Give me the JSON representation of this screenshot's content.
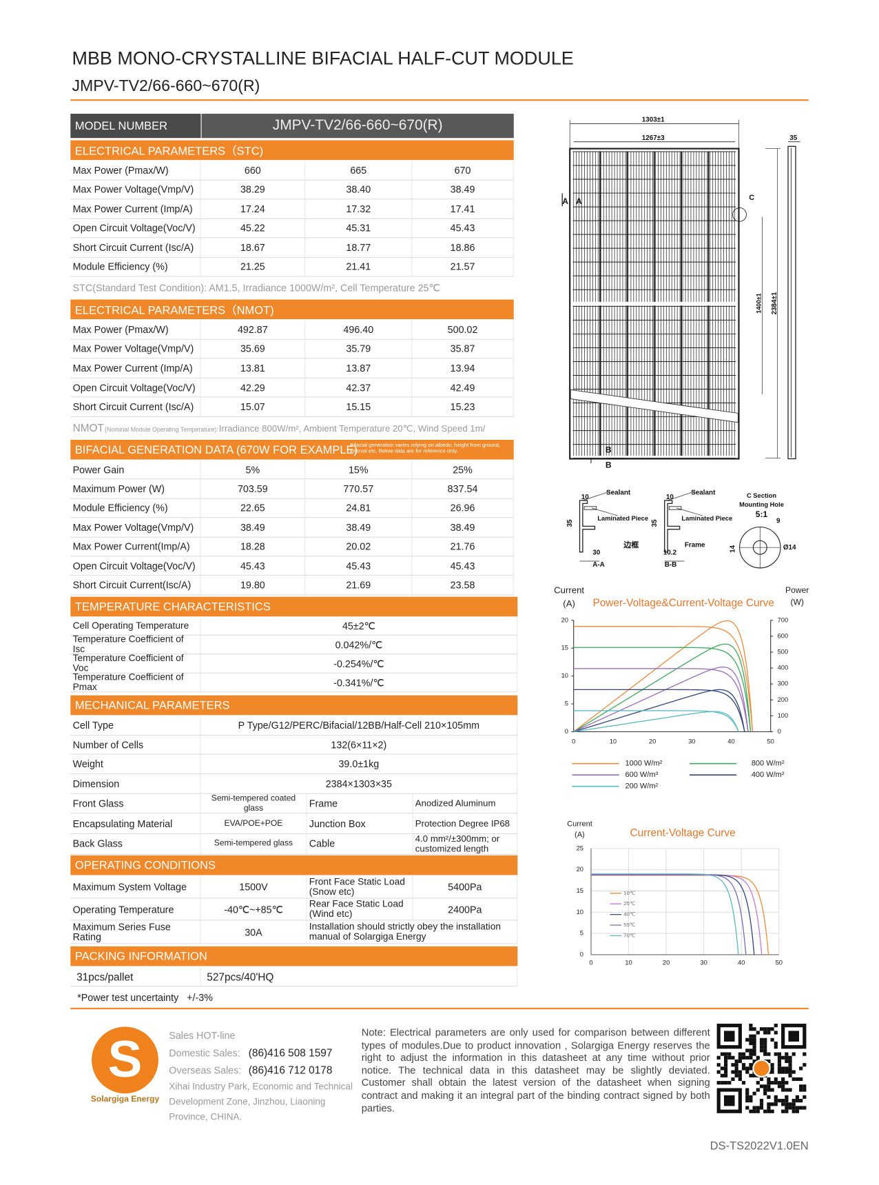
{
  "header": {
    "title": "MBB MONO-CRYSTALLINE BIFACIAL HALF-CUT MODULE",
    "subtitle": "JMPV-TV2/66-660~670(R)"
  },
  "model": {
    "label": "MODEL NUMBER",
    "value": "JMPV-TV2/66-660~670(R)"
  },
  "stc": {
    "title": "ELECTRICAL PARAMETERS（STC)",
    "rows": [
      [
        "Max Power (Pmax/W)",
        "660",
        "665",
        "670"
      ],
      [
        "Max Power Voltage(Vmp/V)",
        "38.29",
        "38.40",
        "38.49"
      ],
      [
        "Max Power Current (Imp/A)",
        "17.24",
        "17.32",
        "17.41"
      ],
      [
        "Open Circuit Voltage(Voc/V)",
        "45.22",
        "45.31",
        "45.43"
      ],
      [
        "Short Circuit Current (Isc/A)",
        "18.67",
        "18.77",
        "18.86"
      ],
      [
        "Module Efficiency (%)",
        "21.25",
        "21.41",
        "21.57"
      ]
    ],
    "note": "STC(Standard Test Condition): AM1.5, Irradiance 1000W/m², Cell Temperature 25℃"
  },
  "nmot": {
    "title": "ELECTRICAL PARAMETERS（NMOT)",
    "rows": [
      [
        "Max Power (Pmax/W)",
        "492.87",
        "496.40",
        "500.02"
      ],
      [
        "Max Power Voltage(Vmp/V)",
        "35.69",
        "35.79",
        "35.87"
      ],
      [
        "Max Power Current (Imp/A)",
        "13.81",
        "13.87",
        "13.94"
      ],
      [
        "Open Circuit Voltage(Voc/V)",
        "42.29",
        "42.37",
        "42.49"
      ],
      [
        "Short Circuit Current (Isc/A)",
        "15.07",
        "15.15",
        "15.23"
      ]
    ],
    "note": [
      "NMOT",
      "(Nominal Module Operating Temperature):",
      "Irradiance 800W/m², Ambient Temperature 20℃, Wind Speed 1m/"
    ]
  },
  "bifacial": {
    "title": "BIFACIAL GENERATION DATA (670W FOR EXAMPLE)",
    "note": "Bifacial generation varies relying on albedo, height from ground, interval etc. Below data are for reference only.",
    "rows": [
      [
        "Power Gain",
        "5%",
        "15%",
        "25%"
      ],
      [
        "Maximum Power (W)",
        "703.59",
        "770.57",
        "837.54"
      ],
      [
        "Module Efficiency (%)",
        "22.65",
        "24.81",
        "26.96"
      ],
      [
        "Max Power Voltage(Vmp/V)",
        "38.49",
        "38.49",
        "38.49"
      ],
      [
        "Max Power Current(Imp/A)",
        "18.28",
        "20.02",
        "21.76"
      ],
      [
        "Open Circuit Voltage(Voc/V)",
        "45.43",
        "45.43",
        "45.43"
      ],
      [
        "Short Circuit Current(Isc/A)",
        "19.80",
        "21.69",
        "23.58"
      ]
    ]
  },
  "temperature": {
    "title": "TEMPERATURE CHARACTERISTICS",
    "rows": [
      [
        "Cell Operating Temperature",
        "45±2℃"
      ],
      [
        "Temperature Coefficient of Isc",
        "0.042%/℃"
      ],
      [
        "Temperature Coefficient of Voc",
        "-0.254%/℃"
      ],
      [
        "Temperature Coefficient of Pmax",
        "-0.341%/℃"
      ]
    ]
  },
  "mechanical": {
    "title": "MECHANICAL PARAMETERS",
    "rows": [
      [
        "Cell Type",
        "P Type/G12/PERC/Bifacial/12BB/Half-Cell 210×105mm"
      ],
      [
        "Number of Cells",
        "132(6×11×2)"
      ],
      [
        "Weight",
        "39.0±1kg"
      ],
      [
        "Dimension",
        "2384×1303×35"
      ],
      [
        "Front Glass",
        "Semi-tempered coated glass",
        "Frame",
        "Anodized Aluminum"
      ],
      [
        "Encapsulating Material",
        "EVA/POE+POE",
        "Junction Box",
        "Protection Degree IP68"
      ],
      [
        "Back Glass",
        "Semi-tempered glass",
        "Cable",
        "4.0 mm²/±300mm; or customized length"
      ]
    ]
  },
  "operating": {
    "title": "OPERATING CONDITIONS",
    "rows": [
      [
        "Maximum System Voltage",
        "1500V",
        "Front Face Static Load (Snow etc)",
        "5400Pa"
      ],
      [
        "Operating Temperature",
        "-40℃~+85℃",
        "Rear Face Static Load (Wind etc)",
        "2400Pa"
      ],
      [
        "Maximum Series Fuse Rating",
        "30A",
        "Installation should strictly obey the installation manual of Solargiga Energy"
      ]
    ]
  },
  "packing": {
    "title": "PACKING INFORMATION",
    "rows": [
      [
        "31pcs/pallet",
        "527pcs/40'HQ"
      ]
    ]
  },
  "footnote": "*Power test uncertainty   +/-3%",
  "drawing": {
    "labels": [
      "1303±1",
      "1267±3",
      "35",
      "A",
      "A",
      "C",
      "1400±1",
      "2384±1",
      "B",
      "B",
      "Sealant",
      "10",
      "Laminated Piece",
      "35",
      "30",
      "边框",
      "A-A",
      "Sealant",
      "10",
      "Laminated Piece",
      "35",
      "Frame",
      "10.2",
      "B-B",
      "C Section",
      "Mounting Hole",
      "5:1",
      "9",
      "14",
      "Ø14"
    ]
  },
  "pv_chart": {
    "title": "Power-Voltage&Current-Voltage Curve",
    "y_label": [
      "Current",
      "(A)"
    ],
    "y2_label": [
      "Power",
      "(W)"
    ],
    "yticks": [
      "20",
      "15",
      "10",
      "5",
      "0"
    ],
    "y2ticks": [
      "700",
      "600",
      "500",
      "400",
      "300",
      "200",
      "100",
      "0"
    ],
    "xticks": [
      "0",
      "10",
      "20",
      "30",
      "40",
      "50"
    ],
    "legend": [
      "1000 W/m²",
      "800 W/m²",
      "600 W/m³",
      "400 W/m²",
      "200 W/m²"
    ]
  },
  "iv_chart": {
    "title": "Current-Voltage Curve",
    "y_label": [
      "Current",
      "(A)"
    ],
    "yticks": [
      "25",
      "20",
      "15",
      "10",
      "5",
      "0"
    ],
    "xticks": [
      "0",
      "10",
      "20",
      "30",
      "40",
      "50"
    ],
    "legend": [
      "10℃",
      "25℃",
      "40℃",
      "55℃",
      "70℃"
    ]
  },
  "footer": {
    "logo_mark": "S",
    "logo_name": "Solargiga Energy",
    "hotline": "Sales HOT-line",
    "domestic_label": "Domestic Sales:",
    "domestic_phone": "(86)416 508 1597",
    "overseas_label": "Overseas Sales:",
    "overseas_phone": "(86)416 712 0178",
    "address": "Xihai Industry Park, Economic and Technical Development Zone, Jinzhou, Liaoning Province, CHINA.",
    "note": "Note: Electrical parameters are only used for comparison between different types of modules.Due to product innovation , Solargiga Energy reserves the right to adjust the information in this datasheet at any time without prior notice. The technical data in this datasheet may be slightly deviated. Customer shall obtain the latest version of the datasheet when signing contract and making it an integral part of the binding contract signed by both parties.",
    "doc_id": "DS-TS2022V1.0EN"
  }
}
